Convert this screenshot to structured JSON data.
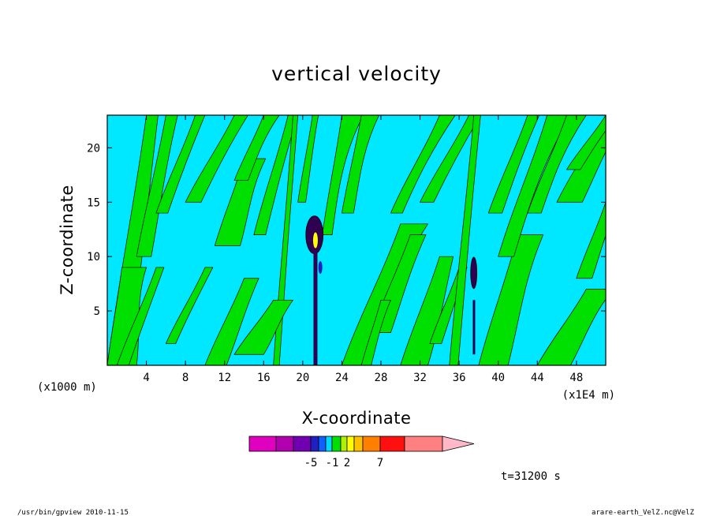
{
  "chart_data": {
    "type": "heatmap",
    "title": "vertical velocity",
    "xlabel": "X-coordinate",
    "ylabel": "Z-coordinate",
    "x_unit": "(x1E4 m)",
    "y_unit": "(x1000 m)",
    "xlim": [
      0,
      51
    ],
    "ylim": [
      0,
      23
    ],
    "x_ticks": [
      4,
      8,
      12,
      16,
      20,
      24,
      28,
      32,
      36,
      40,
      44,
      48
    ],
    "y_ticks": [
      5,
      10,
      15,
      20
    ],
    "colorbar": {
      "colors": [
        "#e000c0",
        "#b000b0",
        "#7000b0",
        "#2020c0",
        "#1060ff",
        "#00d8ff",
        "#00e000",
        "#b0f000",
        "#ffff00",
        "#ffc000",
        "#ff8000",
        "#ff1010",
        "#ff8080",
        "#ffb8c8"
      ],
      "tick_labels": [
        {
          "label": "-5",
          "after_index": 2
        },
        {
          "label": "-1",
          "after_index": 5
        },
        {
          "label": "2",
          "after_index": 7
        },
        {
          "label": "7",
          "after_index": 10
        }
      ]
    },
    "annotation_time": "t=31200 s",
    "grid": false,
    "legend": "colorbar-bottom"
  },
  "footer": {
    "left": "/usr/bin/gpview   2010-11-15",
    "right": "arare-earth_VelZ.nc@VelZ"
  }
}
